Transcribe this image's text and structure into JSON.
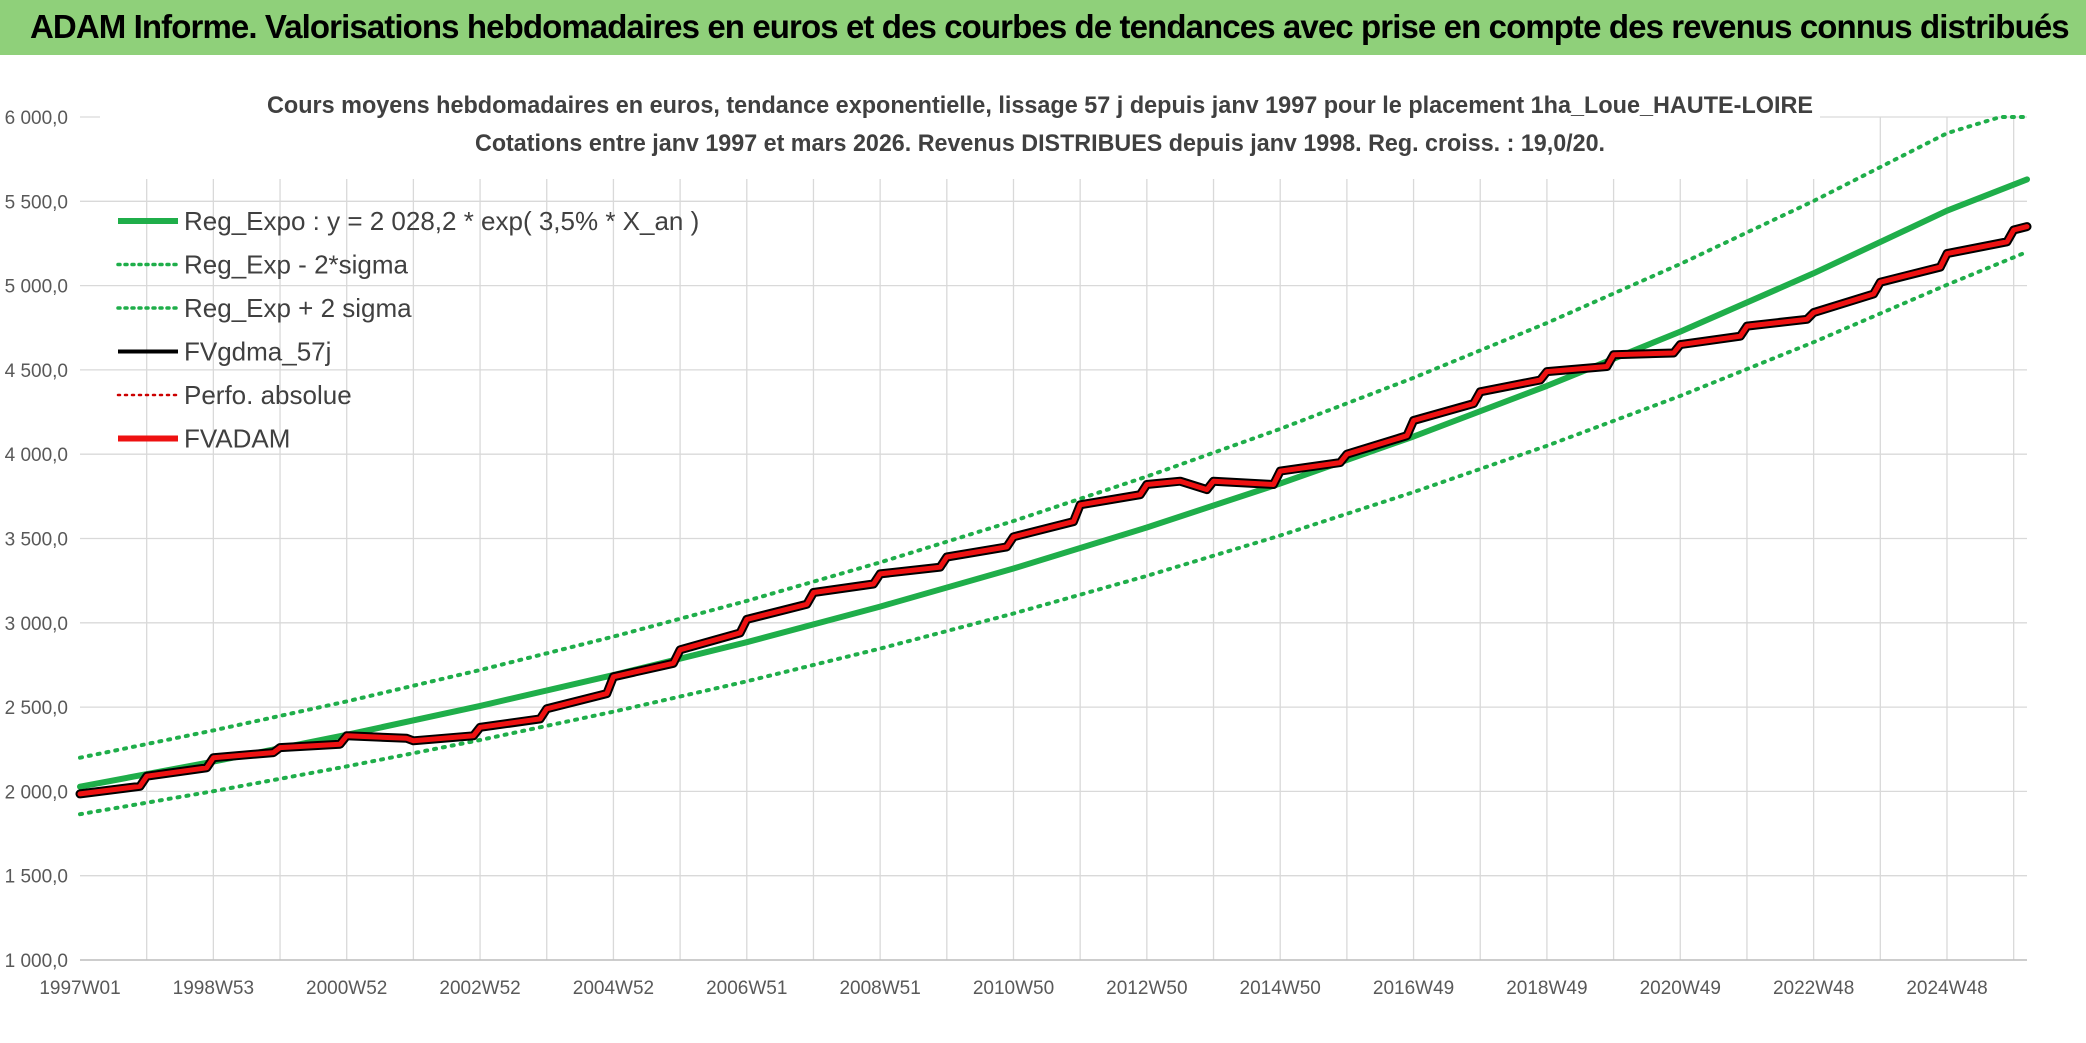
{
  "header": {
    "title": "ADAM Informe. Valorisations hebdomadaires en euros et des courbes de tendances avec prise en compte des revenus connus distribués"
  },
  "colors": {
    "banner": "#8fd07a",
    "reg_expo": "#1fae4a",
    "fvadam": "#ee1111",
    "fvgdma": "#000000",
    "perfo": "#cc0000",
    "grid": "#d9d9d9"
  },
  "chart_data": {
    "type": "line",
    "title": "Cours moyens hebdomadaires en euros, tendance exponentielle, lissage 57 j depuis janv 1997 pour le placement 1ha_Loue_HAUTE-LOIRE",
    "subtitle": "Cotations entre janv 1997 et mars 2026. Revenus DISTRIBUES depuis janv 1998. Reg. croiss. : 19,0/20.",
    "xlabel": "",
    "ylabel": "",
    "ylim": [
      1000,
      6000
    ],
    "xlim": [
      1997.0,
      2026.2
    ],
    "grid": true,
    "legend_position": "top-left",
    "y_ticks": [
      "1 000,0",
      "1 500,0",
      "2 000,0",
      "2 500,0",
      "3 000,0",
      "3 500,0",
      "4 000,0",
      "4 500,0",
      "5 000,0",
      "5 500,0",
      "6 000,0"
    ],
    "x_tick_labels": [
      "1997W01",
      "1998W53",
      "2000W52",
      "2002W52",
      "2004W52",
      "2006W51",
      "2008W51",
      "2010W50",
      "2012W50",
      "2014W50",
      "2016W49",
      "2018W49",
      "2020W49",
      "2022W48",
      "2024W48"
    ],
    "x_tick_years": [
      1997.0,
      1999.0,
      2001.0,
      2003.0,
      2005.0,
      2007.0,
      2009.0,
      2011.0,
      2013.0,
      2015.0,
      2017.0,
      2019.0,
      2021.0,
      2023.0,
      2025.0
    ],
    "regression": {
      "a": 2028.2,
      "rate": 0.035
    },
    "legend": [
      {
        "label": "Reg_Expo : y = 2 028,2 * exp( 3,5% *  X_an )",
        "color": "#1fae4a",
        "dash": "solid",
        "width": 6
      },
      {
        "label": "Reg_Exp - 2*sigma",
        "color": "#1fae4a",
        "dash": "dotted",
        "width": 3.5
      },
      {
        "label": "Reg_Exp + 2 sigma",
        "color": "#1fae4a",
        "dash": "dotted",
        "width": 3.5
      },
      {
        "label": "FVgdma_57j",
        "color": "#000000",
        "dash": "solid",
        "width": 4
      },
      {
        "label": "Perfo. absolue",
        "color": "#cc0000",
        "dash": "dotted",
        "width": 2.5
      },
      {
        "label": "FVADAM",
        "color": "#ee1111",
        "dash": "solid",
        "width": 6
      }
    ],
    "series": [
      {
        "name": "Reg_Expo : y = 2 028,2 * exp( 3,5% *  X_an )",
        "x": [
          1997.0,
          1999.0,
          2001.0,
          2003.0,
          2005.0,
          2007.0,
          2009.0,
          2011.0,
          2013.0,
          2015.0,
          2017.0,
          2019.0,
          2021.0,
          2023.0,
          2025.0,
          2026.2
        ],
        "y": [
          2028,
          2177,
          2336,
          2507,
          2690,
          2885,
          3096,
          3322,
          3565,
          3826,
          4105,
          4405,
          4727,
          5073,
          5444,
          5630
        ]
      },
      {
        "name": "Reg_Exp - 2*sigma",
        "x": [
          1997.0,
          1999.0,
          2001.0,
          2003.0,
          2005.0,
          2007.0,
          2009.0,
          2011.0,
          2013.0,
          2015.0,
          2017.0,
          2019.0,
          2021.0,
          2023.0,
          2025.0,
          2026.2
        ],
        "y": [
          1865,
          2001,
          2148,
          2305,
          2473,
          2653,
          2847,
          3055,
          3278,
          3518,
          3775,
          4050,
          4346,
          4664,
          5005,
          5200
        ]
      },
      {
        "name": "Reg_Exp + 2 sigma",
        "x": [
          1997.0,
          1999.0,
          2001.0,
          2003.0,
          2005.0,
          2007.0,
          2009.0,
          2011.0,
          2013.0,
          2015.0,
          2017.0,
          2019.0,
          2021.0,
          2023.0,
          2025.0,
          2025.8,
          2026.2
        ],
        "y": [
          2200,
          2362,
          2534,
          2720,
          2918,
          3130,
          3358,
          3604,
          3868,
          4150,
          4453,
          4778,
          5128,
          5502,
          5904,
          6000,
          6000
        ]
      },
      {
        "name": "FVgdma_57j",
        "x": [
          1997.0,
          1997.9,
          1998.0,
          1998.9,
          1999.0,
          1999.9,
          2000.0,
          2000.9,
          2001.0,
          2001.9,
          2002.0,
          2002.9,
          2003.0,
          2003.9,
          2004.0,
          2004.9,
          2005.0,
          2005.9,
          2006.0,
          2006.9,
          2007.0,
          2007.9,
          2008.0,
          2008.9,
          2009.0,
          2009.9,
          2010.0,
          2010.9,
          2011.0,
          2011.9,
          2012.0,
          2012.9,
          2013.0,
          2013.5,
          2013.9,
          2014.0,
          2014.9,
          2015.0,
          2015.9,
          2016.0,
          2016.9,
          2017.0,
          2017.9,
          2018.0,
          2018.9,
          2019.0,
          2019.9,
          2020.0,
          2020.9,
          2021.0,
          2021.9,
          2022.0,
          2022.9,
          2023.0,
          2023.9,
          2024.0,
          2024.9,
          2025.0,
          2025.9,
          2026.0,
          2026.2
        ],
        "y": [
          1985,
          2030,
          2090,
          2140,
          2200,
          2230,
          2260,
          2280,
          2330,
          2315,
          2300,
          2330,
          2380,
          2430,
          2490,
          2580,
          2680,
          2760,
          2840,
          2940,
          3020,
          3110,
          3180,
          3230,
          3290,
          3330,
          3390,
          3450,
          3510,
          3600,
          3700,
          3760,
          3820,
          3840,
          3790,
          3840,
          3820,
          3900,
          3950,
          4000,
          4110,
          4200,
          4300,
          4370,
          4440,
          4490,
          4520,
          4590,
          4600,
          4650,
          4700,
          4760,
          4800,
          4840,
          4950,
          5020,
          5110,
          5190,
          5260,
          5330,
          5350
        ]
      },
      {
        "name": "FVADAM",
        "x": [
          1997.0,
          1997.9,
          1998.0,
          1998.9,
          1999.0,
          1999.9,
          2000.0,
          2000.9,
          2001.0,
          2001.9,
          2002.0,
          2002.9,
          2003.0,
          2003.9,
          2004.0,
          2004.9,
          2005.0,
          2005.9,
          2006.0,
          2006.9,
          2007.0,
          2007.9,
          2008.0,
          2008.9,
          2009.0,
          2009.9,
          2010.0,
          2010.9,
          2011.0,
          2011.9,
          2012.0,
          2012.9,
          2013.0,
          2013.5,
          2013.9,
          2014.0,
          2014.9,
          2015.0,
          2015.9,
          2016.0,
          2016.9,
          2017.0,
          2017.9,
          2018.0,
          2018.9,
          2019.0,
          2019.9,
          2020.0,
          2020.9,
          2021.0,
          2021.9,
          2022.0,
          2022.9,
          2023.0,
          2023.9,
          2024.0,
          2024.9,
          2025.0,
          2025.9,
          2026.0,
          2026.2
        ],
        "y": [
          1985,
          2030,
          2090,
          2140,
          2200,
          2230,
          2260,
          2280,
          2330,
          2315,
          2300,
          2330,
          2380,
          2430,
          2490,
          2580,
          2680,
          2760,
          2840,
          2940,
          3020,
          3110,
          3180,
          3230,
          3290,
          3330,
          3390,
          3450,
          3510,
          3600,
          3700,
          3760,
          3820,
          3840,
          3790,
          3840,
          3820,
          3900,
          3950,
          4000,
          4110,
          4200,
          4300,
          4370,
          4440,
          4490,
          4520,
          4590,
          4600,
          4650,
          4700,
          4760,
          4800,
          4840,
          4950,
          5020,
          5110,
          5190,
          5260,
          5330,
          5350
        ]
      }
    ]
  }
}
